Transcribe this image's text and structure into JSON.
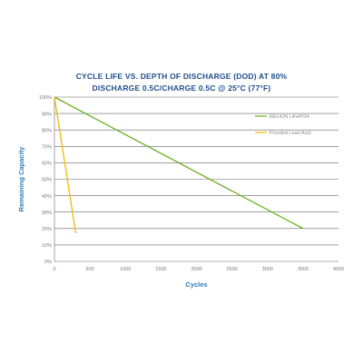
{
  "chart_data": {
    "type": "line",
    "title": "CYCLE LIFE VS. DEPTH OF DISCHARGE (DOD) AT 80%",
    "subtitle": "DISCHARGE 0.5C/CHARGE 0.5C @ 25°C (77°F)",
    "xlabel": "Cycles",
    "ylabel": "Remaining Capacity",
    "xlim": [
      0,
      4000
    ],
    "ylim": [
      0,
      100
    ],
    "x_ticks": [
      0,
      500,
      1000,
      1500,
      2000,
      2500,
      3000,
      3500,
      4000
    ],
    "x_tick_labels": [
      "0",
      "500",
      "1000",
      "1500",
      "2000",
      "2500",
      "3000",
      "3500",
      "4000"
    ],
    "y_ticks": [
      0,
      10,
      20,
      30,
      40,
      50,
      60,
      70,
      80,
      90,
      100
    ],
    "y_tick_labels": [
      "0%",
      "10%",
      "20%",
      "30%",
      "40%",
      "50%",
      "60%",
      "70%",
      "80%",
      "90%",
      "100%"
    ],
    "grid": "horizontal",
    "legend_position": "top-right",
    "series": [
      {
        "name": "RELiON LiFePO4",
        "color": "#6ab023",
        "x": [
          0,
          3500
        ],
        "y": [
          100,
          20
        ]
      },
      {
        "name": "Flooded Lead Acid",
        "color": "#f2b705",
        "x": [
          0,
          300
        ],
        "y": [
          100,
          17
        ]
      }
    ],
    "colors": {
      "title": "#1f4e8c",
      "axis_label": "#2e7bb8",
      "tick_label": "#777777",
      "grid": "#666666",
      "legend_text": "#888888"
    }
  }
}
